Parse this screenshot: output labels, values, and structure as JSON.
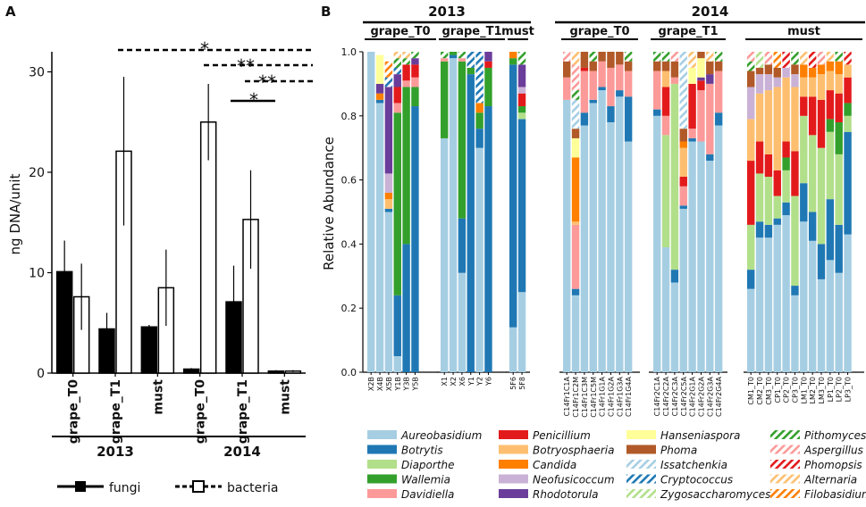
{
  "panel_labels": {
    "a": "A",
    "b": "B"
  },
  "colors": {
    "fungi": "#000000",
    "bacteria": "#ffffff",
    "Aureobasidium": "#a6cee3",
    "Botrytis": "#1f78b4",
    "Diaporthe": "#b2df8a",
    "Wallemia": "#33a02c",
    "Davidiella": "#fb9a99",
    "Penicillium": "#e31a1c",
    "Botryosphaeria": "#fdbf6f",
    "Candida": "#ff7f00",
    "Neofusicoccum": "#cab2d6",
    "Rhodotorula": "#6a3d9a",
    "Hanseniaspora": "#ffff99",
    "Phoma": "#b15928"
  },
  "chart_data": [
    {
      "type": "bar",
      "id": "A",
      "ylabel": "ng DNA/unit",
      "ylim": [
        0,
        32
      ],
      "yticks": [
        "0",
        "10",
        "20",
        "30"
      ],
      "categories": [
        "grape_T0",
        "grape_T1",
        "must",
        "grape_T0",
        "grape_T1",
        "must"
      ],
      "groups": [
        "2013",
        "2014"
      ],
      "series": [
        {
          "name": "fungi",
          "values": [
            10.1,
            4.4,
            4.6,
            0.4,
            7.1,
            0.2
          ],
          "errors": [
            3.1,
            1.6,
            0.2,
            0.1,
            3.6,
            0.1
          ]
        },
        {
          "name": "bacteria",
          "values": [
            7.6,
            22.1,
            8.5,
            25.0,
            15.3,
            0.2
          ],
          "errors": [
            3.3,
            7.4,
            3.8,
            3.8,
            4.9,
            0.1
          ]
        }
      ],
      "significance": [
        "*",
        "**",
        "**",
        "*"
      ],
      "legend": [
        "fungi",
        "bacteria"
      ]
    },
    {
      "type": "stacked_bar",
      "id": "B",
      "ylabel": "Relative Abundance",
      "ylim": [
        0,
        1.0
      ],
      "yticks": [
        "0.0",
        "0.2",
        "0.4",
        "0.6",
        "0.8",
        "1.0"
      ],
      "years": [
        "2013",
        "2014"
      ],
      "groups": [
        {
          "label": "grape_T0",
          "year": "2013",
          "samples": [
            "X2B",
            "X4B",
            "X5B",
            "Y1B",
            "Y3B",
            "Y5B"
          ]
        },
        {
          "label": "grape_T1",
          "year": "2013",
          "samples": [
            "X1",
            "X2",
            "X6",
            "Y1",
            "Y2",
            "Y6"
          ]
        },
        {
          "label": "must",
          "year": "2013",
          "samples": [
            "5F6",
            "5F8"
          ]
        },
        {
          "label": "grape_T0",
          "year": "2014",
          "samples": [
            "C14Fr1C1A",
            "C14Fr1C2M",
            "C14Fr1C3M",
            "C14Fr1C5M",
            "C14Fr1G1A",
            "C14Fr1G2A",
            "C14Fr1G3A",
            "C14Fr1G4A"
          ]
        },
        {
          "label": "grape_T1",
          "year": "2014",
          "samples": [
            "C14Fr2C1A",
            "C14Fr2C2A",
            "C14Fr2C3A",
            "C14Fr2C5A",
            "C14Fr2G1A",
            "C14Fr2G2A",
            "C14Fr2G3A",
            "C14Fr2G4A"
          ]
        },
        {
          "label": "must",
          "year": "2014",
          "samples": [
            "CM1_T0",
            "CM2_T0",
            "CM3_T0",
            "CP1_T0",
            "CP2_T0",
            "CP3_T0",
            "LM1_T0",
            "LM2_T0",
            "LM3_T0",
            "LP1_T0",
            "LP2_T0",
            "LP3_T0"
          ]
        }
      ],
      "taxa": [
        "Aureobasidium",
        "Botrytis",
        "Diaporthe",
        "Wallemia",
        "Davidiella",
        "Penicillium",
        "Botryosphaeria",
        "Candida",
        "Neofusicoccum",
        "Rhodotorula",
        "Hanseniaspora",
        "Phoma",
        "Issatchenkia",
        "Cryptococcus",
        "Zygosaccharomyces",
        "Pithomyces",
        "Aspergillus",
        "Phomopsis",
        "Alternaria",
        "Filobasidium"
      ],
      "values": {
        "X2B": {
          "Aureobasidium": 1.0
        },
        "X4B": {
          "Aureobasidium": 0.84,
          "Botrytis": 0.01,
          "Rhodotorula": 0.03,
          "Hanseniaspora": 0.09,
          "Candida": 0.02
        },
        "X5B": {
          "Aureobasidium": 0.5,
          "Botrytis": 0.01,
          "Botryosphaeria": 0.03,
          "Candida": 0.02,
          "Rhodotorula": 0.27,
          "Cryptococcus": 0.03,
          "Neofusicoccum": 0.06,
          "Filobasidium": 0.05
        },
        "Y1B": {
          "Aureobasidium": 0.05,
          "Botrytis": 0.19,
          "Wallemia": 0.57,
          "Davidiella": 0.03,
          "Penicillium": 0.05,
          "Rhodotorula": 0.04,
          "Pithomyces": 0.03,
          "Cryptococcus": 0.02,
          "Alternaria": 0.02
        },
        "Y3B": {
          "Botrytis": 0.4,
          "Wallemia": 0.49,
          "Davidiella": 0.02,
          "Penicillium": 0.05,
          "Pithomyces": 0.02,
          "Alternaria": 0.02
        },
        "Y5B": {
          "Botrytis": 0.83,
          "Wallemia": 0.06,
          "Penicillium": 0.04,
          "Davidiella": 0.03,
          "Rhodotorula": 0.02,
          "Pithomyces": 0.02
        },
        "X1": {
          "Aureobasidium": 0.73,
          "Wallemia": 0.24,
          "Davidiella": 0.01,
          "Pithomyces": 0.02
        },
        "X2": {
          "Aureobasidium": 0.98,
          "Botrytis": 0.01,
          "Wallemia": 0.01
        },
        "X6": {
          "Aureobasidium": 0.31,
          "Botrytis": 0.17,
          "Wallemia": 0.49,
          "Davidiella": 0.01,
          "Pithomyces": 0.02
        },
        "Y1": {
          "Botrytis": 0.93,
          "Wallemia": 0.02,
          "Cryptococcus": 0.05
        },
        "Y2": {
          "Aureobasidium": 0.7,
          "Botrytis": 0.06,
          "Wallemia": 0.05,
          "Cryptococcus": 0.16,
          "Candida": 0.03
        },
        "Y6": {
          "Botrytis": 0.83,
          "Wallemia": 0.12,
          "Penicillium": 0.02,
          "Rhodotorula": 0.03
        },
        "5F6": {
          "Aureobasidium": 0.14,
          "Botrytis": 0.82,
          "Wallemia": 0.02,
          "Candida": 0.02
        },
        "5F8": {
          "Aureobasidium": 0.25,
          "Botrytis": 0.54,
          "Wallemia": 0.02,
          "Penicillium": 0.04,
          "Diaporthe": 0.02,
          "Neofusicoccum": 0.02,
          "Rhodotorula": 0.07,
          "Pithomyces": 0.04
        },
        "C14Fr1C1A": {
          "Aureobasidium": 0.85,
          "Davidiella": 0.07,
          "Phoma": 0.05,
          "Aspergillus": 0.03
        },
        "C14Fr1C2M": {
          "Aureobasidium": 0.24,
          "Botrytis": 0.02,
          "Davidiella": 0.2,
          "Botryosphaeria": 0.01,
          "Candida": 0.2,
          "Hanseniaspora": 0.06,
          "Aspergillus": 0.08,
          "Issatchenkia": 0.09,
          "Pithomyces": 0.03,
          "Phoma": 0.03,
          "Alternaria": 0.04
        },
        "C14Fr1C3M": {
          "Aureobasidium": 0.77,
          "Botrytis": 0.04,
          "Davidiella": 0.13,
          "Penicillium": 0.01,
          "Phoma": 0.05
        },
        "C14Fr1C5M": {
          "Aureobasidium": 0.84,
          "Botrytis": 0.01,
          "Davidiella": 0.09,
          "Phoma": 0.03,
          "Pithomyces": 0.03
        },
        "C14Fr1G1A": {
          "Aureobasidium": 0.88,
          "Botrytis": 0.01,
          "Davidiella": 0.08,
          "Phoma": 0.03
        },
        "C14Fr1G2A": {
          "Aureobasidium": 0.78,
          "Botrytis": 0.05,
          "Davidiella": 0.12,
          "Phoma": 0.05
        },
        "C14Fr1G3A": {
          "Aureobasidium": 0.86,
          "Botrytis": 0.02,
          "Davidiella": 0.08,
          "Phoma": 0.04
        },
        "C14Fr1G4A": {
          "Aureobasidium": 0.72,
          "Botrytis": 0.14,
          "Davidiella": 0.08,
          "Phoma": 0.03,
          "Pithomyces": 0.03
        },
        "C14Fr2C1A": {
          "Aureobasidium": 0.8,
          "Botrytis": 0.02,
          "Davidiella": 0.12,
          "Phoma": 0.03,
          "Pithomyces": 0.03
        },
        "C14Fr2C2A": {
          "Aureobasidium": 0.39,
          "Davidiella": 0.06,
          "Diaporthe": 0.35,
          "Botryosphaeria": 0.05,
          "Penicillium": 0.09,
          "Phoma": 0.03,
          "Pithomyces": 0.03
        },
        "C14Fr2C3A": {
          "Aureobasidium": 0.28,
          "Botrytis": 0.04,
          "Diaporthe": 0.58,
          "Davidiella": 0.02,
          "Phoma": 0.05,
          "Aspergillus": 0.03
        },
        "C14Fr2C5A": {
          "Aureobasidium": 0.51,
          "Botrytis": 0.01,
          "Davidiella": 0.06,
          "Botryosphaeria": 0.09,
          "Candida": 0.02,
          "Issatchenkia": 0.24,
          "Penicillium": 0.03,
          "Phoma": 0.04
        },
        "C14Fr2G1A": {
          "Aureobasidium": 0.72,
          "Botrytis": 0.01,
          "Penicillium": 0.14,
          "Davidiella": 0.03,
          "Hanseniaspora": 0.05,
          "Alternaria": 0.05
        },
        "C14Fr2G2A": {
          "Aureobasidium": 0.72,
          "Davidiella": 0.16,
          "Penicillium": 0.03,
          "Rhodotorula": 0.01,
          "Hanseniaspora": 0.06,
          "Phoma": 0.02
        },
        "C14Fr2G3A": {
          "Aureobasidium": 0.66,
          "Botrytis": 0.02,
          "Davidiella": 0.22,
          "Phoma": 0.04,
          "Rhodotorula": 0.03,
          "Alternaria": 0.03
        },
        "C14Fr2G4A": {
          "Aureobasidium": 0.77,
          "Botrytis": 0.04,
          "Davidiella": 0.13,
          "Phoma": 0.03,
          "Pithomyces": 0.03
        },
        "CM1_T0": {
          "Aureobasidium": 0.26,
          "Botrytis": 0.06,
          "Diaporthe": 0.14,
          "Penicillium": 0.2,
          "Botryosphaeria": 0.13,
          "Neofusicoccum": 0.1,
          "Phoma": 0.05,
          "Pithomyces": 0.03,
          "Aspergillus": 0.03
        },
        "CM2_T0": {
          "Aureobasidium": 0.42,
          "Botrytis": 0.05,
          "Diaporthe": 0.15,
          "Penicillium": 0.1,
          "Botryosphaeria": 0.15,
          "Neofusicoccum": 0.06,
          "Phoma": 0.02,
          "Zygosaccharomyces": 0.05
        },
        "CM3_T0": {
          "Aureobasidium": 0.42,
          "Botrytis": 0.04,
          "Diaporthe": 0.15,
          "Penicillium": 0.07,
          "Botryosphaeria": 0.2,
          "Neofusicoccum": 0.05,
          "Phoma": 0.03,
          "Aspergillus": 0.04
        },
        "CP1_T0": {
          "Aureobasidium": 0.46,
          "Botrytis": 0.02,
          "Diaporthe": 0.07,
          "Penicillium": 0.08,
          "Botryosphaeria": 0.26,
          "Neofusicoccum": 0.03,
          "Phoma": 0.03,
          "Filobasidium": 0.05
        },
        "CP2_T0": {
          "Aureobasidium": 0.49,
          "Botrytis": 0.04,
          "Diaporthe": 0.1,
          "Penicillium": 0.05,
          "Botryosphaeria": 0.2,
          "Wallemia": 0.04,
          "Neofusicoccum": 0.03,
          "Phomopsis": 0.05
        },
        "CP3_T0": {
          "Aureobasidium": 0.24,
          "Botrytis": 0.03,
          "Diaporthe": 0.28,
          "Penicillium": 0.14,
          "Botryosphaeria": 0.2,
          "Neofusicoccum": 0.04,
          "Phoma": 0.03,
          "Pithomyces": 0.04
        },
        "LM1_T0": {
          "Aureobasidium": 0.47,
          "Botrytis": 0.12,
          "Diaporthe": 0.21,
          "Penicillium": 0.06,
          "Botryosphaeria": 0.06,
          "Candida": 0.04,
          "Alternaria": 0.04
        },
        "LM2_T0": {
          "Aureobasidium": 0.41,
          "Botrytis": 0.09,
          "Diaporthe": 0.24,
          "Penicillium": 0.12,
          "Botryosphaeria": 0.06,
          "Candida": 0.03,
          "Phomopsis": 0.05
        },
        "LM3_T0": {
          "Aureobasidium": 0.29,
          "Botrytis": 0.11,
          "Diaporthe": 0.3,
          "Penicillium": 0.15,
          "Botryosphaeria": 0.08,
          "Candida": 0.03,
          "Aspergillus": 0.04
        },
        "LP1_T0": {
          "Aureobasidium": 0.35,
          "Botrytis": 0.19,
          "Diaporthe": 0.21,
          "Wallemia": 0.04,
          "Penicillium": 0.09,
          "Botryosphaeria": 0.06,
          "Candida": 0.03,
          "Alternaria": 0.03
        },
        "LP2_T0": {
          "Aureobasidium": 0.31,
          "Botrytis": 0.15,
          "Diaporthe": 0.22,
          "Wallemia": 0.1,
          "Penicillium": 0.09,
          "Botryosphaeria": 0.06,
          "Candida": 0.04,
          "Pithomyces": 0.03
        },
        "LP3_T0": {
          "Aureobasidium": 0.43,
          "Botrytis": 0.32,
          "Diaporthe": 0.05,
          "Wallemia": 0.04,
          "Penicillium": 0.08,
          "Botryosphaeria": 0.04,
          "Phomopsis": 0.04
        }
      },
      "legend_columns": [
        [
          "Aureobasidium",
          "Botrytis",
          "Diaporthe",
          "Wallemia",
          "Davidiella"
        ],
        [
          "Penicillium",
          "Botryosphaeria",
          "Candida",
          "Neofusicoccum",
          "Rhodotorula"
        ],
        [
          "Hanseniaspora",
          "Phoma",
          "Issatchenkia",
          "Cryptococcus",
          "Zygosaccharomyces"
        ],
        [
          "Pithomyces",
          "Aspergillus",
          "Phomopsis",
          "Alternaria",
          "Filobasidium"
        ]
      ],
      "hatched": {
        "Issatchenkia": "#a6cee3",
        "Cryptococcus": "#1f78b4",
        "Zygosaccharomyces": "#b2df8a",
        "Pithomyces": "#33a02c",
        "Aspergillus": "#fb9a99",
        "Phomopsis": "#e31a1c",
        "Alternaria": "#fdbf6f",
        "Filobasidium": "#ff7f00"
      }
    }
  ]
}
